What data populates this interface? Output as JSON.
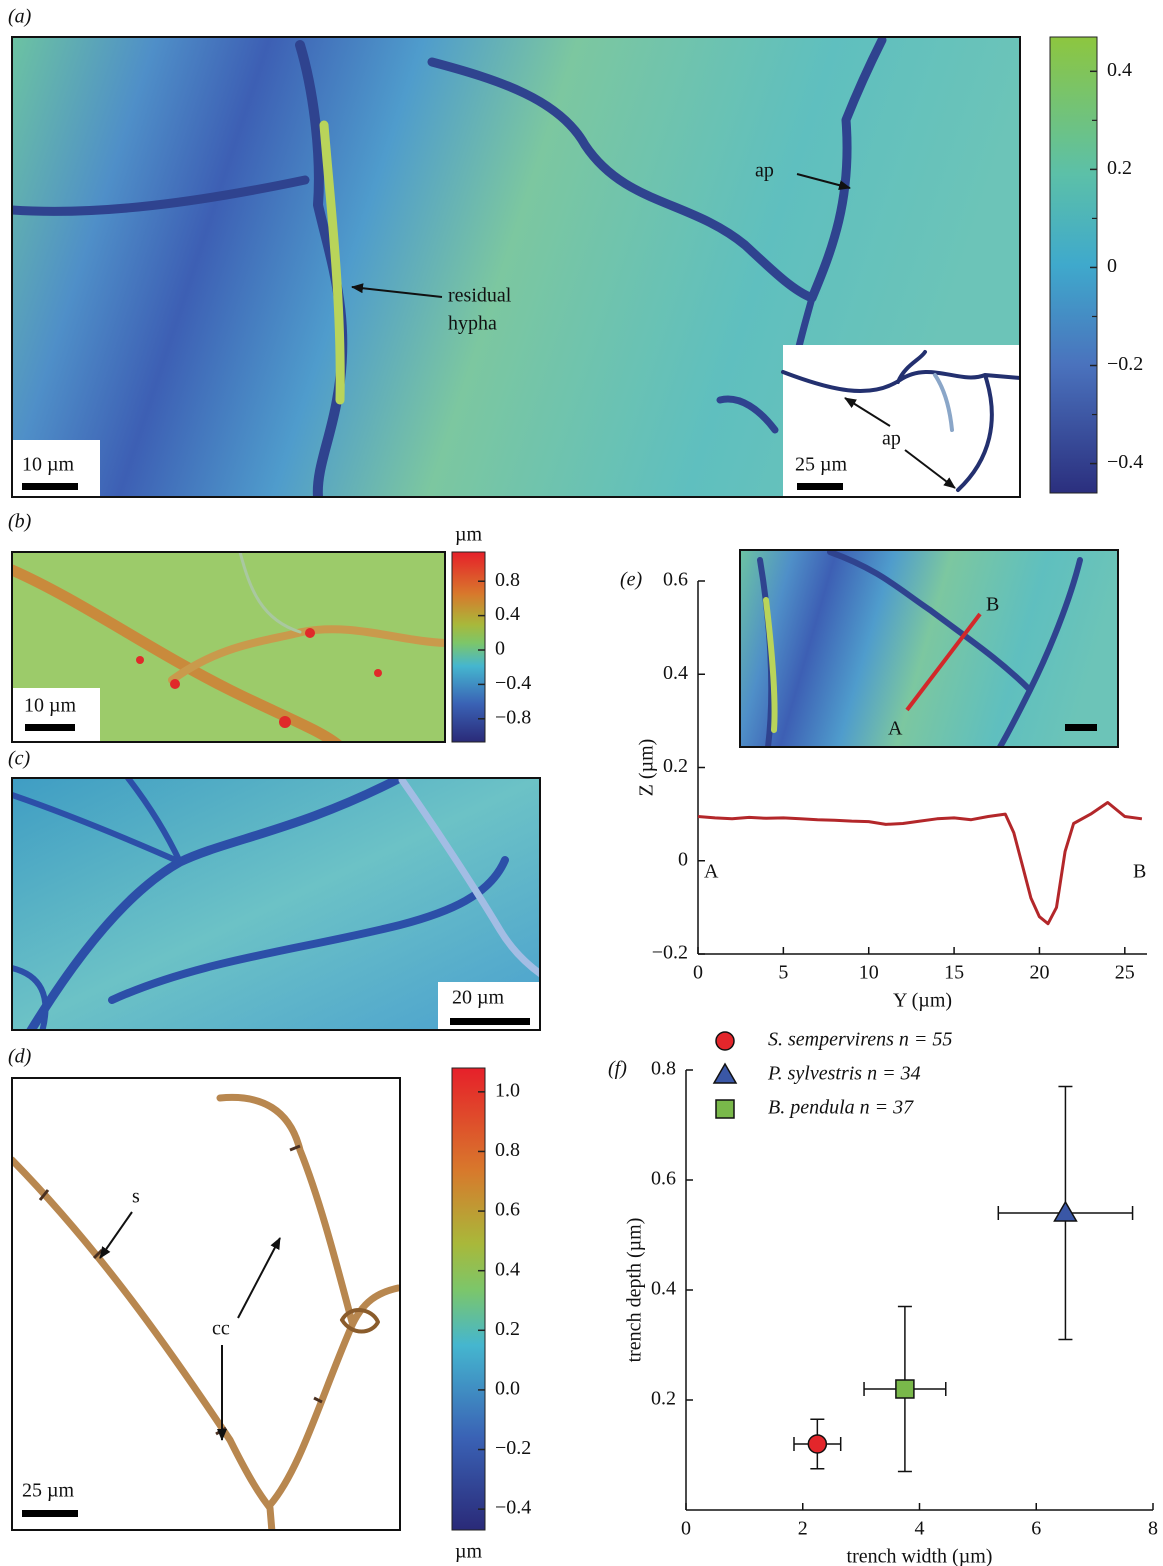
{
  "figure": {
    "a": {
      "label": "(a)",
      "scale_bar": "10 µm",
      "inset_scale_bar": "25 µm",
      "ap_main": "ap",
      "residual_hypha": [
        "residual",
        "hypha"
      ],
      "ap_inset": "ap",
      "colorbar": {
        "lim": [
          -0.46,
          0.47
        ],
        "ticks": [
          0.4,
          0.2,
          0,
          {
            "value": -0.2,
            "label": "−0.2"
          },
          {
            "value": -0.4,
            "label": "−0.4"
          }
        ],
        "minor_ticks": [
          0.3,
          0.1,
          -0.1,
          -0.3
        ]
      }
    },
    "b": {
      "label": "(b)",
      "scale_bar": "10 µm",
      "colorbar": {
        "unit": "µm",
        "lim": [
          -1.07,
          1.14
        ],
        "ticks": [
          0.8,
          0.4,
          0,
          {
            "value": -0.4,
            "label": "−0.4"
          },
          {
            "value": -0.8,
            "label": "−0.8"
          }
        ]
      }
    },
    "c": {
      "label": "(c)",
      "scale_bar": "20 µm"
    },
    "d": {
      "label": "(d)",
      "scale_bar": "25 µm",
      "s": "s",
      "cc": "cc",
      "colorbar": {
        "unit": "µm",
        "lim": [
          -0.47,
          1.08
        ],
        "ticks": [
          {
            "value": 1,
            "label": "1.0"
          },
          0.8,
          0.6,
          0.4,
          0.2,
          {
            "value": 0,
            "label": "0.0"
          },
          {
            "value": -0.2,
            "label": "−0.2"
          },
          {
            "value": -0.4,
            "label": "−0.4"
          }
        ]
      }
    }
  },
  "chart_data": [
    {
      "type": "line",
      "label": "(e)",
      "x_label": "Y (µm)",
      "y_label": "Z (µm)",
      "x": [
        0,
        1,
        2,
        3,
        4,
        5,
        6,
        7,
        8,
        9,
        10,
        11,
        12,
        13,
        14,
        15,
        16,
        17,
        18,
        18.5,
        19,
        19.5,
        20,
        20.5,
        21,
        21.5,
        22,
        23,
        24,
        25,
        26
      ],
      "series": [
        {
          "color": "#b3272a",
          "values": [
            0.095,
            0.092,
            0.09,
            0.093,
            0.091,
            0.092,
            0.09,
            0.088,
            0.087,
            0.085,
            0.084,
            0.078,
            0.08,
            0.085,
            0.09,
            0.092,
            0.088,
            0.095,
            0.1,
            0.06,
            -0.01,
            -0.08,
            -0.12,
            -0.135,
            -0.1,
            0.02,
            0.08,
            0.1,
            0.125,
            0.095,
            0.09
          ]
        }
      ],
      "xlim": [
        0,
        26.3
      ],
      "ylim": [
        -0.2,
        0.6
      ],
      "xticks": [
        0,
        5,
        10,
        15,
        20,
        25
      ],
      "yticks": [
        {
          "value": -0.2,
          "label": "−0.2"
        },
        0,
        0.2,
        0.4,
        0.6
      ],
      "start_label": "A",
      "end_label": "B",
      "inset_labels": [
        "A",
        "B"
      ]
    },
    {
      "type": "scatter",
      "label": "(f)",
      "x_label": "trench width (µm)",
      "y_label": "trench depth (µm)",
      "xlim": [
        0,
        8
      ],
      "ylim": [
        0,
        0.8
      ],
      "xticks": [
        0,
        2,
        4,
        6,
        8
      ],
      "yticks": [
        0.2,
        0.4,
        0.6,
        0.8
      ],
      "series": [
        {
          "name": "S. sempervirens n = 55",
          "color": "#e3262b",
          "marker": "circle",
          "x": [
            2.25
          ],
          "values": [
            0.12
          ],
          "xerr": [
            0.4
          ],
          "yerr": [
            0.045
          ]
        },
        {
          "name": "P. sylvestris n = 34",
          "color": "#3a57a6",
          "marker": "triangle",
          "x": [
            6.5
          ],
          "values": [
            0.54
          ],
          "xerr": [
            1.15
          ],
          "yerr": [
            0.23
          ]
        },
        {
          "name": "B. pendula n = 37",
          "color": "#79b84a",
          "marker": "square",
          "x": [
            3.75
          ],
          "values": [
            0.22
          ],
          "xerr": [
            0.7
          ],
          "yerr": [
            0.15
          ]
        }
      ]
    }
  ]
}
